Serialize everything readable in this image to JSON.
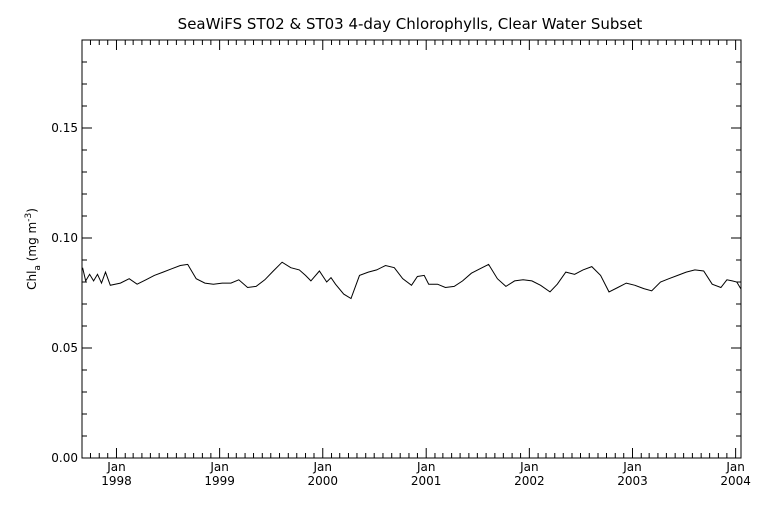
{
  "chart_data": {
    "type": "line",
    "title": "SeaWiFS ST02 & ST03 4-day Chlorophylls, Clear Water Subset",
    "ylabel": {
      "main": "Chl",
      "sub": "a",
      "units_pre": " (mg m",
      "units_sup": "-3",
      "units_post": ")"
    },
    "xlabel": "",
    "ylim": [
      0.0,
      0.19
    ],
    "yticks": [
      {
        "value": 0.0,
        "label": "0.00"
      },
      {
        "value": 0.05,
        "label": "0.05"
      },
      {
        "value": 0.1,
        "label": "0.10"
      },
      {
        "value": 0.15,
        "label": "0.15"
      }
    ],
    "xlim": [
      "1997-09-01",
      "2004-01-20"
    ],
    "xticks": [
      {
        "date": "1998-01-01",
        "label_top": "Jan",
        "label_bottom": "1998"
      },
      {
        "date": "1999-01-01",
        "label_top": "Jan",
        "label_bottom": "1999"
      },
      {
        "date": "2000-01-01",
        "label_top": "Jan",
        "label_bottom": "2000"
      },
      {
        "date": "2001-01-01",
        "label_top": "Jan",
        "label_bottom": "2001"
      },
      {
        "date": "2002-01-01",
        "label_top": "Jan",
        "label_bottom": "2002"
      },
      {
        "date": "2003-01-01",
        "label_top": "Jan",
        "label_bottom": "2003"
      },
      {
        "date": "2004-01-01",
        "label_top": "Jan",
        "label_bottom": "2004"
      }
    ],
    "grid": false,
    "series": [
      {
        "color": "#000000",
        "points": [
          [
            "1997-09-03",
            0.0865
          ],
          [
            "1997-09-14",
            0.0805
          ],
          [
            "1997-09-28",
            0.0835
          ],
          [
            "1997-10-12",
            0.0805
          ],
          [
            "1997-10-26",
            0.0835
          ],
          [
            "1997-11-09",
            0.0795
          ],
          [
            "1997-11-23",
            0.0845
          ],
          [
            "1997-12-10",
            0.0785
          ],
          [
            "1998-01-15",
            0.0795
          ],
          [
            "1998-02-15",
            0.0815
          ],
          [
            "1998-03-15",
            0.079
          ],
          [
            "1998-04-15",
            0.081
          ],
          [
            "1998-05-15",
            0.083
          ],
          [
            "1998-06-15",
            0.0845
          ],
          [
            "1998-07-15",
            0.086
          ],
          [
            "1998-08-15",
            0.0875
          ],
          [
            "1998-09-10",
            0.088
          ],
          [
            "1998-10-10",
            0.0815
          ],
          [
            "1998-11-10",
            0.0795
          ],
          [
            "1998-12-10",
            0.079
          ],
          [
            "1999-01-10",
            0.0795
          ],
          [
            "1999-02-10",
            0.0795
          ],
          [
            "1999-03-10",
            0.081
          ],
          [
            "1999-04-10",
            0.0775
          ],
          [
            "1999-05-10",
            0.078
          ],
          [
            "1999-06-10",
            0.081
          ],
          [
            "1999-07-10",
            0.085
          ],
          [
            "1999-08-10",
            0.089
          ],
          [
            "1999-09-10",
            0.0865
          ],
          [
            "1999-10-10",
            0.0855
          ],
          [
            "1999-11-01",
            0.083
          ],
          [
            "1999-11-20",
            0.0805
          ],
          [
            "1999-12-20",
            0.085
          ],
          [
            "2000-01-15",
            0.08
          ],
          [
            "2000-01-30",
            0.082
          ],
          [
            "2000-02-15",
            0.079
          ],
          [
            "2000-03-15",
            0.0745
          ],
          [
            "2000-04-10",
            0.0725
          ],
          [
            "2000-05-10",
            0.083
          ],
          [
            "2000-06-10",
            0.0845
          ],
          [
            "2000-07-10",
            0.0855
          ],
          [
            "2000-08-10",
            0.0875
          ],
          [
            "2000-09-10",
            0.0865
          ],
          [
            "2000-10-10",
            0.0815
          ],
          [
            "2000-11-10",
            0.0785
          ],
          [
            "2000-12-01",
            0.0825
          ],
          [
            "2000-12-25",
            0.083
          ],
          [
            "2001-01-10",
            0.079
          ],
          [
            "2001-02-10",
            0.079
          ],
          [
            "2001-03-10",
            0.0775
          ],
          [
            "2001-04-10",
            0.078
          ],
          [
            "2001-05-10",
            0.0805
          ],
          [
            "2001-06-10",
            0.084
          ],
          [
            "2001-07-10",
            0.086
          ],
          [
            "2001-08-10",
            0.088
          ],
          [
            "2001-09-10",
            0.0815
          ],
          [
            "2001-10-10",
            0.078
          ],
          [
            "2001-11-10",
            0.0805
          ],
          [
            "2001-12-10",
            0.081
          ],
          [
            "2002-01-10",
            0.0805
          ],
          [
            "2002-02-10",
            0.0785
          ],
          [
            "2002-03-15",
            0.0755
          ],
          [
            "2002-04-10",
            0.079
          ],
          [
            "2002-05-10",
            0.0845
          ],
          [
            "2002-06-10",
            0.0835
          ],
          [
            "2002-07-10",
            0.0855
          ],
          [
            "2002-08-10",
            0.087
          ],
          [
            "2002-09-10",
            0.083
          ],
          [
            "2002-10-10",
            0.0755
          ],
          [
            "2002-11-10",
            0.0775
          ],
          [
            "2002-12-10",
            0.0795
          ],
          [
            "2003-01-10",
            0.0785
          ],
          [
            "2003-02-10",
            0.077
          ],
          [
            "2003-03-10",
            0.076
          ],
          [
            "2003-04-10",
            0.08
          ],
          [
            "2003-05-10",
            0.0815
          ],
          [
            "2003-06-10",
            0.083
          ],
          [
            "2003-07-10",
            0.0845
          ],
          [
            "2003-08-10",
            0.0855
          ],
          [
            "2003-09-10",
            0.085
          ],
          [
            "2003-10-10",
            0.079
          ],
          [
            "2003-11-10",
            0.0775
          ],
          [
            "2003-12-01",
            0.081
          ],
          [
            "2003-12-20",
            0.0805
          ],
          [
            "2004-01-05",
            0.08
          ],
          [
            "2004-01-19",
            0.077
          ]
        ]
      }
    ]
  }
}
